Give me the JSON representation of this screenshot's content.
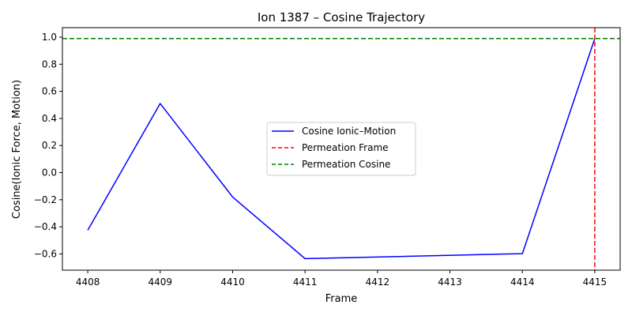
{
  "chart_data": {
    "type": "line",
    "title": "Ion 1387 – Cosine Trajectory",
    "xlabel": "Frame",
    "ylabel": "Cosine(Ionic Force, Motion)",
    "xlim": [
      4407.65,
      4415.35
    ],
    "ylim": [
      -0.72,
      1.07
    ],
    "x_ticks": [
      4408,
      4409,
      4410,
      4411,
      4412,
      4413,
      4414,
      4415
    ],
    "y_ticks": [
      -0.6,
      -0.4,
      -0.2,
      0.0,
      0.2,
      0.4,
      0.6,
      0.8,
      1.0
    ],
    "y_tick_labels": [
      "−0.6",
      "−0.4",
      "−0.2",
      "0.0",
      "0.2",
      "0.4",
      "0.6",
      "0.8",
      "1.0"
    ],
    "grid": false,
    "legend_position": "center",
    "series": [
      {
        "name": "Cosine Ionic–Motion",
        "color": "#0000ff",
        "style": "solid",
        "x": [
          4408,
          4409,
          4410,
          4411,
          4414,
          4415
        ],
        "y": [
          -0.425,
          0.51,
          -0.18,
          -0.635,
          -0.598,
          0.99
        ]
      }
    ],
    "reference_lines": [
      {
        "name": "Permeation Frame",
        "orientation": "vertical",
        "x": 4415,
        "color": "#ff0000",
        "style": "dashed"
      },
      {
        "name": "Permeation Cosine",
        "orientation": "horizontal",
        "y": 0.99,
        "color": "#008000",
        "style": "dashed"
      }
    ]
  }
}
